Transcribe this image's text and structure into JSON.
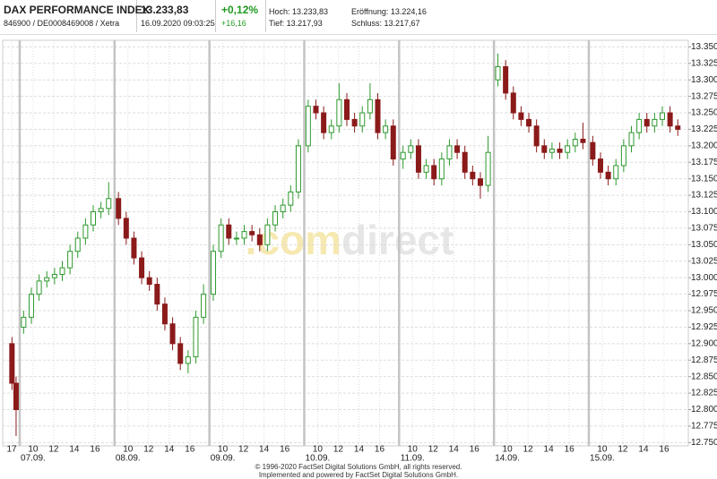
{
  "header": {
    "name": "DAX PERFORMANCE INDEX",
    "ids": "846900 / DE0008469008 / Xetra",
    "price": "13.233,83",
    "timestamp": "16.09.2020 09:03:25",
    "change_pct": "+0,12%",
    "change_abs": "+16,16",
    "high": "Hoch: 13.233,83",
    "low": "Tief: 13.217,93",
    "open": "Eröffnung: 13.224,16",
    "close": "Schluss: 13.217,67"
  },
  "watermark": {
    "part1": ".com",
    "part2": "direct"
  },
  "footer": {
    "line1": "© 1996-2020 FactSet Digital Solutions GmbH, all rights reserved.",
    "line2": "Implemented and powered by FactSet Digital Solutions GmbH."
  },
  "chart_data": {
    "type": "candlestick",
    "up_color": "#2e9a2e",
    "down_color": "#8b1a1a",
    "grid": true,
    "grid_color": "#dddddd",
    "separator_color": "#c4c4c4",
    "xlim": [
      0,
      66.5
    ],
    "ylim": [
      12745,
      13360
    ],
    "yticks": [
      {
        "value": 12750,
        "label": "12.750"
      },
      {
        "value": 12775,
        "label": "12.775"
      },
      {
        "value": 12800,
        "label": "12.800"
      },
      {
        "value": 12825,
        "label": "12.825"
      },
      {
        "value": 12850,
        "label": "12.850"
      },
      {
        "value": 12875,
        "label": "12.875"
      },
      {
        "value": 12900,
        "label": "12.900"
      },
      {
        "value": 12925,
        "label": "12.925"
      },
      {
        "value": 12950,
        "label": "12.950"
      },
      {
        "value": 12975,
        "label": "12.975"
      },
      {
        "value": 13000,
        "label": "13.000"
      },
      {
        "value": 13025,
        "label": "13.025"
      },
      {
        "value": 13050,
        "label": "13.050"
      },
      {
        "value": 13075,
        "label": "13.075"
      },
      {
        "value": 13100,
        "label": "13.100"
      },
      {
        "value": 13125,
        "label": "13.125"
      },
      {
        "value": 13150,
        "label": "13.150"
      },
      {
        "value": 13175,
        "label": "13.175"
      },
      {
        "value": 13200,
        "label": "13.200"
      },
      {
        "value": 13225,
        "label": "13.225"
      },
      {
        "value": 13250,
        "label": "13.250"
      },
      {
        "value": 13275,
        "label": "13.275"
      },
      {
        "value": 13300,
        "label": "13.300"
      },
      {
        "value": 13325,
        "label": "13.325"
      },
      {
        "value": 13350,
        "label": "13.350"
      }
    ],
    "xticks": [
      {
        "value": 0.87,
        "label": "17"
      },
      {
        "value": 2.95,
        "label": "10"
      },
      {
        "value": 4.95,
        "label": "12"
      },
      {
        "value": 6.95,
        "label": "14"
      },
      {
        "value": 8.95,
        "label": "16"
      },
      {
        "value": 12.15,
        "label": "10"
      },
      {
        "value": 14.15,
        "label": "12"
      },
      {
        "value": 16.15,
        "label": "14"
      },
      {
        "value": 18.15,
        "label": "16"
      },
      {
        "value": 21.35,
        "label": "10"
      },
      {
        "value": 23.35,
        "label": "12"
      },
      {
        "value": 25.35,
        "label": "14"
      },
      {
        "value": 27.35,
        "label": "16"
      },
      {
        "value": 30.55,
        "label": "10"
      },
      {
        "value": 32.55,
        "label": "12"
      },
      {
        "value": 34.55,
        "label": "14"
      },
      {
        "value": 36.55,
        "label": "16"
      },
      {
        "value": 39.75,
        "label": "10"
      },
      {
        "value": 41.75,
        "label": "12"
      },
      {
        "value": 43.75,
        "label": "14"
      },
      {
        "value": 45.75,
        "label": "16"
      },
      {
        "value": 48.95,
        "label": "10"
      },
      {
        "value": 50.95,
        "label": "12"
      },
      {
        "value": 52.95,
        "label": "14"
      },
      {
        "value": 54.95,
        "label": "16"
      },
      {
        "value": 58.15,
        "label": "10"
      },
      {
        "value": 60.15,
        "label": "12"
      },
      {
        "value": 62.15,
        "label": "14"
      },
      {
        "value": 64.15,
        "label": "16"
      }
    ],
    "date_labels": [
      {
        "value": 2.95,
        "label": "07.09."
      },
      {
        "value": 12.15,
        "label": "08.09."
      },
      {
        "value": 21.35,
        "label": "09.09."
      },
      {
        "value": 30.55,
        "label": "10.09."
      },
      {
        "value": 39.75,
        "label": "11.09."
      },
      {
        "value": 48.95,
        "label": "14.09."
      },
      {
        "value": 58.15,
        "label": "15.09."
      }
    ],
    "day_separators": [
      1.65,
      10.85,
      20.05,
      29.25,
      38.45,
      47.65,
      56.85
    ],
    "x": [
      0.9,
      1.3,
      2.03,
      2.78,
      3.53,
      4.28,
      5.03,
      5.78,
      6.53,
      7.28,
      8.03,
      8.78,
      9.53,
      10.28,
      11.23,
      11.98,
      12.73,
      13.48,
      14.23,
      14.98,
      15.73,
      16.48,
      17.23,
      17.98,
      18.73,
      19.48,
      20.43,
      21.18,
      21.93,
      22.68,
      23.43,
      24.18,
      24.93,
      25.68,
      26.43,
      27.18,
      27.93,
      28.68,
      29.63,
      30.38,
      31.13,
      31.88,
      32.63,
      33.38,
      34.13,
      34.88,
      35.63,
      36.38,
      37.13,
      37.88,
      38.83,
      39.58,
      40.33,
      41.08,
      41.83,
      42.58,
      43.33,
      44.08,
      44.83,
      45.58,
      46.33,
      47.08,
      48.03,
      48.78,
      49.53,
      50.28,
      51.03,
      51.78,
      52.53,
      53.28,
      54.03,
      54.78,
      55.53,
      56.28,
      57.23,
      57.98,
      58.73,
      59.48,
      60.23,
      60.98,
      61.73,
      62.48,
      63.23,
      63.98,
      64.73,
      65.48
    ],
    "open": [
      12900,
      12840,
      12925,
      12940,
      12975,
      12995,
      13000,
      13005,
      13015,
      13040,
      13060,
      13080,
      13100,
      13105,
      13120,
      13090,
      13060,
      13030,
      13000,
      12990,
      12960,
      12930,
      12900,
      12870,
      12880,
      12940,
      12975,
      13040,
      13080,
      13060,
      13060,
      13070,
      13065,
      13050,
      13080,
      13100,
      13110,
      13130,
      13200,
      13260,
      13250,
      13220,
      13230,
      13270,
      13240,
      13230,
      13250,
      13270,
      13220,
      13230,
      13180,
      13190,
      13200,
      13160,
      13170,
      13150,
      13180,
      13200,
      13190,
      13160,
      13150,
      13140,
      13300,
      13320,
      13280,
      13250,
      13240,
      13230,
      13200,
      13190,
      13195,
      13190,
      13200,
      13210,
      13205,
      13180,
      13160,
      13150,
      13170,
      13200,
      13220,
      13240,
      13230,
      13240,
      13250,
      13230
    ],
    "high": [
      12910,
      12850,
      12950,
      12985,
      13005,
      13010,
      13015,
      13025,
      13050,
      13070,
      13090,
      13110,
      13115,
      13145,
      13130,
      13100,
      13070,
      13040,
      13010,
      13000,
      12970,
      12940,
      12910,
      12890,
      12950,
      12990,
      13050,
      13090,
      13090,
      13070,
      13080,
      13080,
      13075,
      13090,
      13110,
      13120,
      13140,
      13210,
      13270,
      13270,
      13260,
      13240,
      13295,
      13280,
      13250,
      13260,
      13295,
      13280,
      13240,
      13240,
      13200,
      13210,
      13210,
      13180,
      13180,
      13190,
      13210,
      13210,
      13200,
      13170,
      13160,
      13215,
      13340,
      13330,
      13290,
      13260,
      13250,
      13240,
      13210,
      13205,
      13205,
      13210,
      13220,
      13235,
      13215,
      13190,
      13170,
      13180,
      13210,
      13230,
      13250,
      13250,
      13250,
      13260,
      13260,
      13240
    ],
    "low": [
      12830,
      12760,
      12915,
      12930,
      12965,
      12985,
      12990,
      12995,
      13005,
      13030,
      13050,
      13070,
      13090,
      13095,
      13080,
      13050,
      13020,
      12990,
      12980,
      12950,
      12920,
      12890,
      12860,
      12855,
      12870,
      12930,
      12965,
      13030,
      13050,
      13050,
      13050,
      13055,
      13040,
      13040,
      13070,
      13090,
      13100,
      13120,
      13190,
      13240,
      13210,
      13210,
      13220,
      13230,
      13220,
      13220,
      13240,
      13210,
      13210,
      13170,
      13165,
      13180,
      13150,
      13150,
      13140,
      13140,
      13170,
      13180,
      13150,
      13140,
      13120,
      13130,
      13290,
      13270,
      13240,
      13230,
      13220,
      13190,
      13180,
      13180,
      13180,
      13180,
      13190,
      13195,
      13170,
      13150,
      13140,
      13140,
      13160,
      13190,
      13210,
      13220,
      13220,
      13230,
      13220,
      13215
    ],
    "close": [
      12840,
      12800,
      12940,
      12975,
      12995,
      13000,
      13005,
      13015,
      13040,
      13060,
      13080,
      13100,
      13105,
      13120,
      13090,
      13060,
      13030,
      13000,
      12990,
      12960,
      12930,
      12900,
      12870,
      12880,
      12940,
      12975,
      13040,
      13080,
      13060,
      13060,
      13070,
      13065,
      13050,
      13080,
      13100,
      13110,
      13130,
      13200,
      13260,
      13250,
      13220,
      13230,
      13270,
      13240,
      13230,
      13250,
      13270,
      13220,
      13230,
      13180,
      13190,
      13200,
      13160,
      13170,
      13150,
      13180,
      13200,
      13190,
      13160,
      13150,
      13140,
      13190,
      13320,
      13280,
      13250,
      13240,
      13230,
      13200,
      13190,
      13195,
      13190,
      13200,
      13210,
      13205,
      13180,
      13160,
      13150,
      13170,
      13200,
      13220,
      13240,
      13230,
      13240,
      13250,
      13230,
      13225
    ]
  }
}
